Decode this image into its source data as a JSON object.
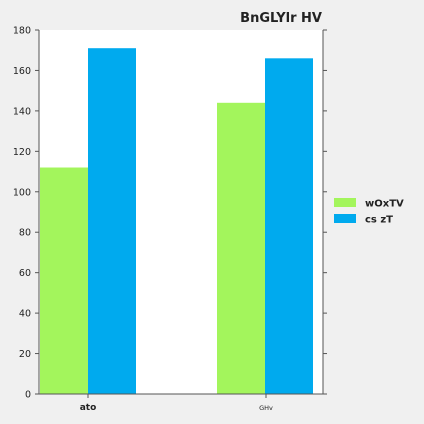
{
  "chart_data": {
    "type": "bar",
    "title": "BnGLYlr HV",
    "categories": [
      "ato",
      "GHv"
    ],
    "series": [
      {
        "name": "wOxTV",
        "color": "#a3f55c",
        "values": [
          112,
          144
        ]
      },
      {
        "name": "cs zT",
        "color": "#00aaee",
        "values": [
          171,
          166
        ]
      }
    ],
    "xlabel": "",
    "ylabel": "",
    "ylim": [
      0,
      180
    ],
    "yticks": [
      0,
      20,
      40,
      60,
      80,
      100,
      120,
      140,
      160,
      180
    ],
    "grid": false,
    "legend_position": "right"
  },
  "colors": {
    "background": "#f0f0f0",
    "plot_background": "#ffffff",
    "axis": "#555555",
    "text": "#222222"
  }
}
